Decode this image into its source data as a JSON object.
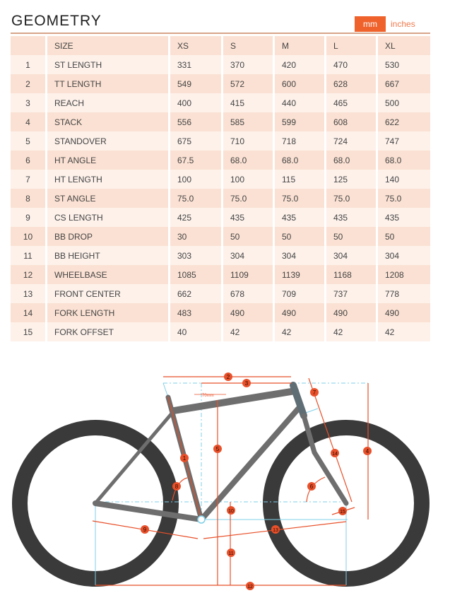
{
  "header": {
    "title": "GEOMETRY",
    "unit_mm": "mm",
    "unit_inches": "inches",
    "active_unit": "mm"
  },
  "colors": {
    "accent": "#f0622c",
    "row_dark": "#fbe1d3",
    "row_light": "#fdf1ea",
    "tire": "#3a3a3a",
    "frame": "#6e6e6e",
    "dimension_line": "#e8502a",
    "guide_line": "#7fcfe8"
  },
  "table": {
    "columns": [
      "",
      "SIZE",
      "XS",
      "S",
      "M",
      "L",
      "XL"
    ],
    "rows": [
      [
        "1",
        "ST LENGTH",
        "331",
        "370",
        "420",
        "470",
        "530"
      ],
      [
        "2",
        "TT LENGTH",
        "549",
        "572",
        "600",
        "628",
        "667"
      ],
      [
        "3",
        "REACH",
        "400",
        "415",
        "440",
        "465",
        "500"
      ],
      [
        "4",
        "STACK",
        "556",
        "585",
        "599",
        "608",
        "622"
      ],
      [
        "5",
        "STANDOVER",
        "675",
        "710",
        "718",
        "724",
        "747"
      ],
      [
        "6",
        "HT ANGLE",
        "67.5",
        "68.0",
        "68.0",
        "68.0",
        "68.0"
      ],
      [
        "7",
        "HT LENGTH",
        "100",
        "100",
        "115",
        "125",
        "140"
      ],
      [
        "8",
        "ST ANGLE",
        "75.0",
        "75.0",
        "75.0",
        "75.0",
        "75.0"
      ],
      [
        "9",
        "CS LENGTH",
        "425",
        "435",
        "435",
        "435",
        "435"
      ],
      [
        "10",
        "BB DROP",
        "30",
        "50",
        "50",
        "50",
        "50"
      ],
      [
        "11",
        "BB HEIGHT",
        "303",
        "304",
        "304",
        "304",
        "304"
      ],
      [
        "12",
        "WHEELBASE",
        "1085",
        "1109",
        "1139",
        "1168",
        "1208"
      ],
      [
        "13",
        "FRONT CENTER",
        "662",
        "678",
        "709",
        "737",
        "778"
      ],
      [
        "14",
        "FORK LENGTH",
        "483",
        "490",
        "490",
        "490",
        "490"
      ],
      [
        "15",
        "FORK OFFSET",
        "40",
        "42",
        "42",
        "42",
        "42"
      ]
    ]
  },
  "diagram": {
    "offset_label": "70mm",
    "markers": [
      "1",
      "2",
      "3",
      "4",
      "5",
      "6",
      "7",
      "8",
      "9",
      "10",
      "11",
      "12",
      "13",
      "14",
      "15"
    ]
  }
}
